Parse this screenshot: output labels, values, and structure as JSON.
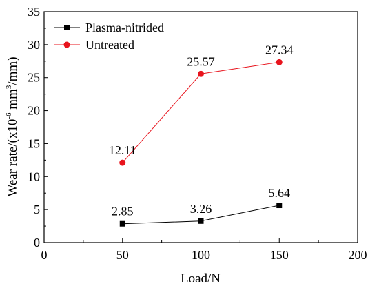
{
  "chart_data": {
    "type": "line",
    "xlabel": "Load/N",
    "ylabel": {
      "prefix": "Wear rate/(x10",
      "exp1": "-6",
      "mid": " mm",
      "exp2": "3",
      "suffix": "/mm)"
    },
    "xlim": [
      0,
      200
    ],
    "ylim": [
      0,
      35
    ],
    "xticks": [
      0,
      50,
      100,
      150,
      200
    ],
    "yticks": [
      0,
      5,
      10,
      15,
      20,
      25,
      30,
      35
    ],
    "grid": false,
    "legend_position": "top-left",
    "series": [
      {
        "name": "Plasma-nitrided",
        "marker": "square",
        "color": "#000000",
        "line_color": "#000000",
        "x": [
          50,
          100,
          150
        ],
        "values": [
          2.85,
          3.26,
          5.64
        ],
        "labels": [
          "2.85",
          "3.26",
          "5.64"
        ]
      },
      {
        "name": "Untreated",
        "marker": "circle",
        "color": "#e8141d",
        "line_color": "#e8141d",
        "x": [
          50,
          100,
          150
        ],
        "values": [
          12.11,
          25.57,
          27.34
        ],
        "labels": [
          "12.11",
          "25.57",
          "27.34"
        ]
      }
    ]
  }
}
